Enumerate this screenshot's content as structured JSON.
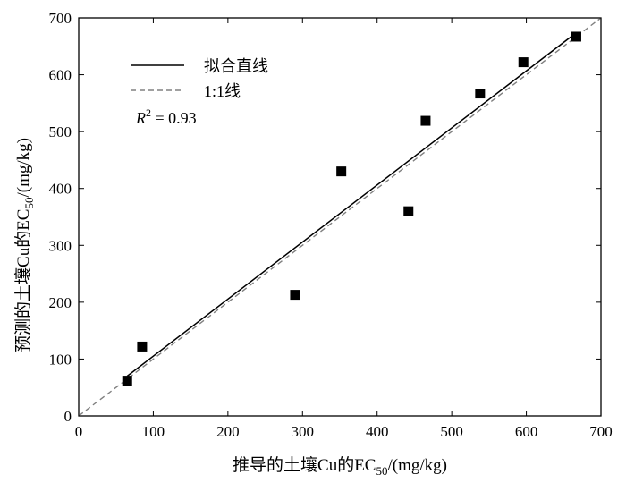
{
  "chart_data": {
    "type": "scatter",
    "x": [
      65,
      85,
      290,
      352,
      442,
      465,
      538,
      596,
      667
    ],
    "y": [
      62,
      122,
      213,
      430,
      360,
      519,
      567,
      622,
      667
    ],
    "xlim": [
      0,
      700
    ],
    "ylim": [
      0,
      700
    ],
    "xticks": [
      0,
      100,
      200,
      300,
      400,
      500,
      600,
      700
    ],
    "yticks": [
      0,
      100,
      200,
      300,
      400,
      500,
      600,
      700
    ],
    "xlabel": "推导的土壤Cu的EC50/(mg/kg)",
    "ylabel": "预测的土壤Cu的EC50/(mg/kg)",
    "grid": false,
    "legend_position": "top-left",
    "fit_line": {
      "label": "拟合直线",
      "x": [
        65,
        667
      ],
      "y": [
        70,
        674
      ],
      "color": "#000000"
    },
    "identity_line": {
      "label": "1:1线",
      "x": [
        0,
        700
      ],
      "y": [
        0,
        700
      ],
      "color": "#808080"
    },
    "annotation": {
      "symbol": "R",
      "exponent": "2",
      "text": " = 0.93"
    },
    "marker_color": "#000000"
  }
}
